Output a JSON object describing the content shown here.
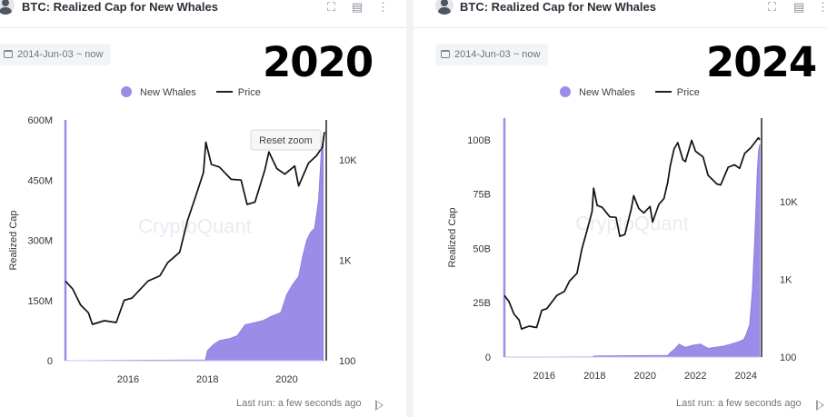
{
  "panels": [
    {
      "title": "BTC: Realized Cap for New Whales",
      "date_range": "2014-Jun-03 ~ now",
      "year_label": "2020",
      "reset_zoom": "Reset zoom",
      "watermark": "CryptoQuant",
      "last_run": "Last run: a few seconds ago"
    },
    {
      "title": "BTC: Realized Cap for New Whales",
      "date_range": "2014-Jun-03 ~ now",
      "year_label": "2024",
      "watermark": "CryptoQuant",
      "last_run": "Last run: a few seconds ago"
    }
  ],
  "toolbar_icons": [
    "fullscreen-icon",
    "chart-type-icon",
    "more-vert-icon"
  ],
  "chart_data": [
    {
      "type": "area",
      "ylabel": "Realized Cap",
      "legend": [
        "New Whales",
        "Price"
      ],
      "legend_placement": "top-center",
      "colors": {
        "new_whales": "#9b8ce8",
        "price": "#111111",
        "axis_line": "#9b8ce8"
      },
      "x_ticks": [
        "2016",
        "2018",
        "2020"
      ],
      "x_range": [
        2014.42,
        2020.95
      ],
      "y_left_ticks": [
        {
          "v": 0,
          "label": "0"
        },
        {
          "v": 150,
          "label": "150M"
        },
        {
          "v": 300,
          "label": "300M"
        },
        {
          "v": 450,
          "label": "450M"
        },
        {
          "v": 600,
          "label": "600M"
        }
      ],
      "y_left_range": [
        0,
        600
      ],
      "y_right_ticks": [
        {
          "v": 100,
          "label": "100"
        },
        {
          "v": 1000,
          "label": "1K"
        },
        {
          "v": 10000,
          "label": "10K"
        }
      ],
      "y_right_scale": "log",
      "y_right_range": [
        100,
        25000
      ],
      "grid": false,
      "series": [
        {
          "name": "New Whales",
          "unit": "USD (M)",
          "x": [
            2014.42,
            2017.95,
            2018.0,
            2018.15,
            2018.3,
            2018.55,
            2018.75,
            2018.95,
            2019.2,
            2019.4,
            2019.6,
            2019.85,
            2020.0,
            2020.15,
            2020.3,
            2020.4,
            2020.5,
            2020.6,
            2020.7,
            2020.8,
            2020.87,
            2020.92
          ],
          "y": [
            0,
            2,
            25,
            40,
            50,
            55,
            62,
            90,
            95,
            100,
            110,
            120,
            165,
            190,
            210,
            260,
            300,
            320,
            330,
            400,
            520,
            560
          ]
        },
        {
          "name": "Price",
          "unit": "USD",
          "x": [
            2014.42,
            2014.6,
            2014.8,
            2015.0,
            2015.1,
            2015.4,
            2015.7,
            2015.9,
            2016.1,
            2016.5,
            2016.8,
            2017.0,
            2017.3,
            2017.5,
            2017.7,
            2017.9,
            2017.96,
            2018.1,
            2018.3,
            2018.6,
            2018.85,
            2019.0,
            2019.2,
            2019.45,
            2019.55,
            2019.75,
            2019.95,
            2020.2,
            2020.3,
            2020.55,
            2020.75,
            2020.9,
            2020.95
          ],
          "y": [
            620,
            520,
            360,
            300,
            230,
            250,
            240,
            400,
            420,
            620,
            700,
            950,
            1200,
            2500,
            4300,
            7500,
            15000,
            9000,
            8500,
            6400,
            6300,
            3600,
            3800,
            8000,
            12000,
            8200,
            7200,
            8700,
            5500,
            9300,
            11000,
            13500,
            19000
          ]
        }
      ]
    },
    {
      "type": "area",
      "ylabel": "Realized Cap",
      "legend": [
        "New Whales",
        "Price"
      ],
      "legend_placement": "top-center",
      "colors": {
        "new_whales": "#9b8ce8",
        "price": "#111111",
        "axis_line": "#9b8ce8"
      },
      "x_ticks": [
        "2016",
        "2018",
        "2020",
        "2022",
        "2024"
      ],
      "x_range": [
        2014.42,
        2024.55
      ],
      "y_left_ticks": [
        {
          "v": 0,
          "label": "0"
        },
        {
          "v": 25,
          "label": "25B"
        },
        {
          "v": 50,
          "label": "50B"
        },
        {
          "v": 75,
          "label": "75B"
        },
        {
          "v": 100,
          "label": "100B"
        }
      ],
      "y_left_range": [
        0,
        110
      ],
      "y_right_ticks": [
        {
          "v": 100,
          "label": "100"
        },
        {
          "v": 1000,
          "label": "1K"
        },
        {
          "v": 10000,
          "label": "10K"
        }
      ],
      "y_right_scale": "log",
      "y_right_range": [
        100,
        120000
      ],
      "grid": false,
      "series": [
        {
          "name": "New Whales",
          "unit": "USD (B)",
          "x": [
            2014.42,
            2017.9,
            2018.0,
            2020.9,
            2021.0,
            2021.2,
            2021.35,
            2021.6,
            2021.9,
            2022.2,
            2022.5,
            2022.8,
            2023.1,
            2023.4,
            2023.7,
            2023.9,
            2024.0,
            2024.15,
            2024.25,
            2024.35,
            2024.45,
            2024.5,
            2024.55
          ],
          "y": [
            0,
            0.1,
            0.5,
            0.8,
            2,
            4,
            6,
            4.5,
            5.5,
            6,
            4,
            4.5,
            5,
            6,
            7,
            8,
            10,
            15,
            30,
            55,
            85,
            95,
            98
          ]
        },
        {
          "name": "Price",
          "unit": "USD",
          "x": [
            2014.42,
            2014.6,
            2014.8,
            2015.0,
            2015.1,
            2015.4,
            2015.7,
            2015.9,
            2016.1,
            2016.5,
            2016.8,
            2017.0,
            2017.3,
            2017.5,
            2017.7,
            2017.9,
            2017.96,
            2018.1,
            2018.3,
            2018.6,
            2018.85,
            2019.0,
            2019.2,
            2019.45,
            2019.55,
            2019.75,
            2019.95,
            2020.2,
            2020.3,
            2020.55,
            2020.75,
            2020.9,
            2021.0,
            2021.15,
            2021.3,
            2021.5,
            2021.6,
            2021.85,
            2022.0,
            2022.3,
            2022.5,
            2022.85,
            2023.0,
            2023.3,
            2023.55,
            2023.75,
            2023.95,
            2024.2,
            2024.5,
            2024.55
          ],
          "y": [
            620,
            520,
            360,
            300,
            230,
            250,
            240,
            400,
            420,
            620,
            700,
            950,
            1200,
            2500,
            4300,
            7500,
            15000,
            9000,
            8500,
            6400,
            6300,
            3600,
            3800,
            8000,
            12000,
            8200,
            7200,
            8700,
            5500,
            9300,
            11000,
            18000,
            29000,
            48000,
            58000,
            35000,
            33000,
            62000,
            45000,
            38000,
            22000,
            17000,
            16500,
            28000,
            30000,
            27000,
            42000,
            50000,
            67000,
            63000
          ]
        }
      ]
    }
  ]
}
